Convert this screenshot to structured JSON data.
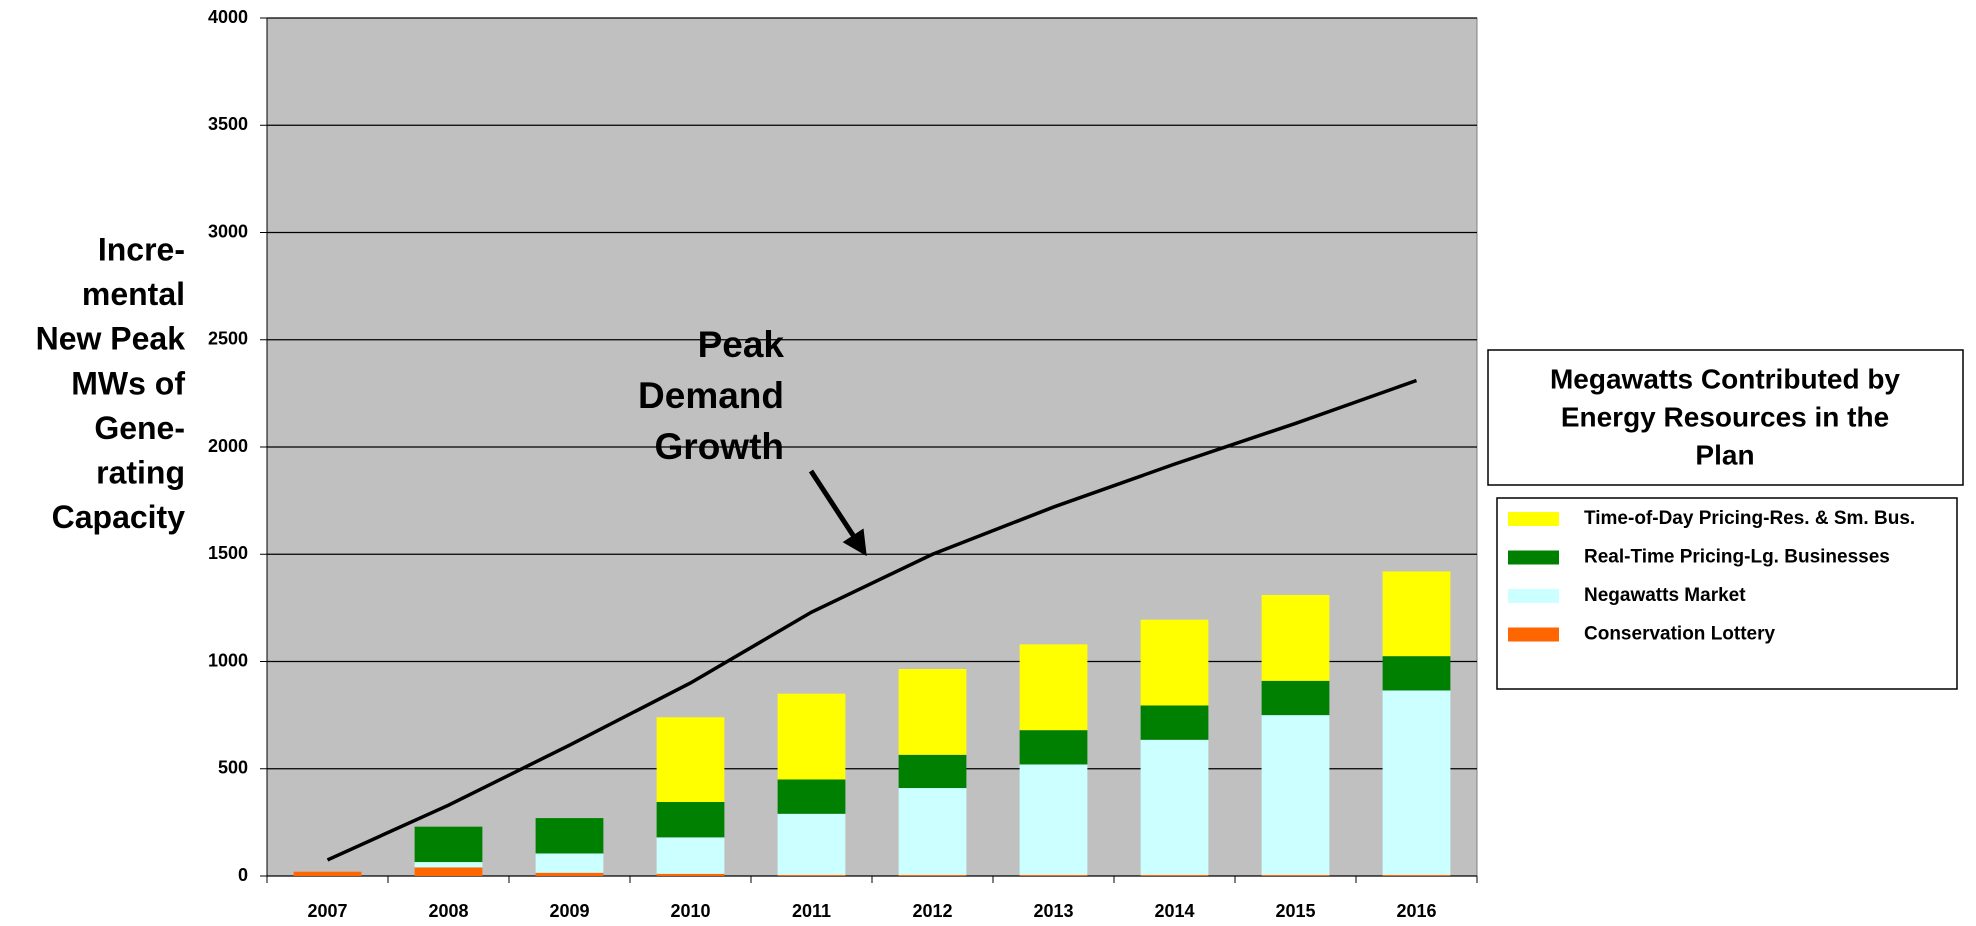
{
  "chart_data": {
    "type": "bar",
    "stacked": true,
    "y_label_lines": [
      "Incre-",
      "mental",
      "New Peak",
      "MWs of",
      "Gene-",
      "rating",
      "Capacity"
    ],
    "annotation_lines": [
      "Peak",
      "Demand",
      "Growth"
    ],
    "legend_title_lines": [
      "Megawatts Contributed by",
      "Energy Resources in the",
      "Plan"
    ],
    "categories": [
      "2007",
      "2008",
      "2009",
      "2010",
      "2011",
      "2012",
      "2013",
      "2014",
      "2015",
      "2016"
    ],
    "series": [
      {
        "name": "Conservation Lottery",
        "color": "#ff6600",
        "values": [
          20,
          40,
          15,
          10,
          5,
          5,
          5,
          5,
          5,
          5
        ]
      },
      {
        "name": "Negawatts Market",
        "color": "#ccffff",
        "values": [
          0,
          25,
          90,
          170,
          285,
          405,
          515,
          630,
          745,
          860
        ]
      },
      {
        "name": "Real-Time Pricing-Lg. Businesses",
        "color": "#008000",
        "values": [
          0,
          165,
          165,
          165,
          160,
          155,
          160,
          160,
          160,
          160
        ]
      },
      {
        "name": "Time-of-Day Pricing-Res. & Sm. Bus.",
        "color": "#ffff00",
        "values": [
          0,
          0,
          0,
          395,
          400,
          400,
          400,
          400,
          400,
          395
        ]
      },
      {
        "type": "line",
        "color": "#000000",
        "values": [
          75,
          330,
          610,
          900,
          1230,
          1500,
          1720,
          1920,
          2110,
          2310
        ]
      }
    ],
    "ylim": [
      0,
      4000
    ],
    "yticks": [
      0,
      500,
      1000,
      1500,
      2000,
      2500,
      3000,
      3500,
      4000
    ],
    "grid": true,
    "plot_background": "#c0c0c0",
    "legend_position": "right"
  }
}
